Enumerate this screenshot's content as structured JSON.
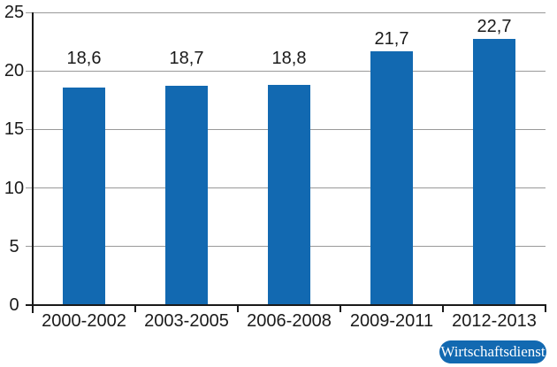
{
  "chart_data": {
    "type": "bar",
    "title": "",
    "xlabel": "",
    "ylabel": "",
    "categories": [
      "2000-2002",
      "2003-2005",
      "2006-2008",
      "2009-2011",
      "2012-2013"
    ],
    "values": [
      18.6,
      18.7,
      18.8,
      21.7,
      22.7
    ],
    "value_labels": [
      "18,6",
      "18,7",
      "18,8",
      "21,7",
      "22,7"
    ],
    "ylim": [
      0,
      25
    ],
    "yticks": [
      0,
      5,
      10,
      15,
      20,
      25
    ],
    "ytick_labels": [
      "0",
      "5",
      "10",
      "15",
      "20",
      "25"
    ],
    "grid": true,
    "legend": "none",
    "bar_color": "#1269b1",
    "gridline_color": "#999999",
    "axis_color": "#1a1a1a",
    "text_color": "#1a1a1a"
  },
  "badge": {
    "label": "Wirtschaftsdienst",
    "bg_color": "#1269b1",
    "text_color": "#ffffff"
  }
}
